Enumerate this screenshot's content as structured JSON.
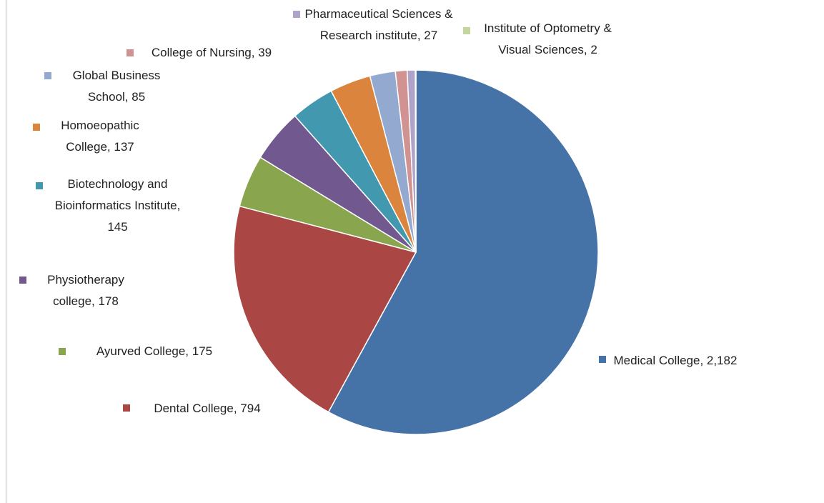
{
  "chart_data": {
    "type": "pie",
    "categories": [
      "Medical College, 2,182",
      "Dental College, 794",
      "Ayurved College, 175",
      "Physiotherapy college, 178",
      "Biotechnology and Bioinformatics Institute, 145",
      "Homoeopathic College, 137",
      "Global Business School, 85",
      "College of Nursing, 39",
      "Pharmaceutical Sciences & Research institute, 27",
      "Institute of Optometry & Visual Sciences, 2"
    ],
    "values": [
      2182,
      794,
      175,
      178,
      145,
      137,
      85,
      39,
      27,
      2
    ],
    "colors": [
      "#4572a7",
      "#aa4643",
      "#89a54e",
      "#71588f",
      "#4198af",
      "#db843d",
      "#93a9cf",
      "#d19392",
      "#b0a3c9",
      "#c3d69b"
    ]
  }
}
